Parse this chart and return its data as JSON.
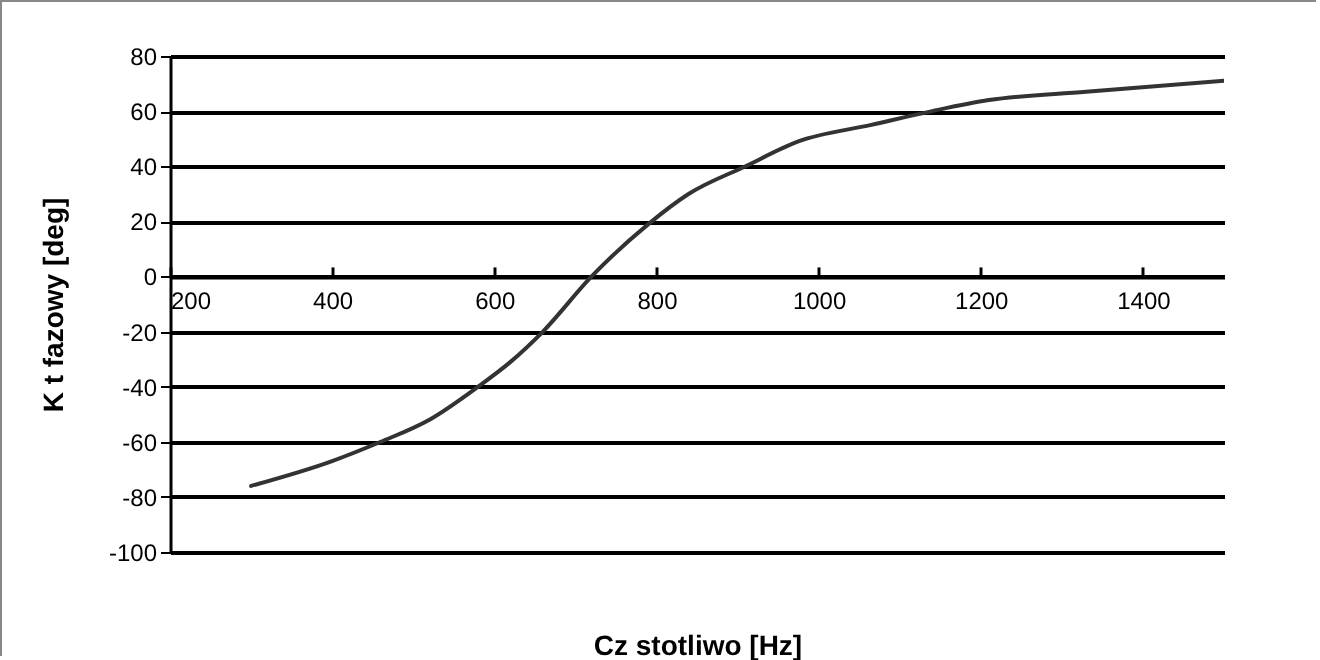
{
  "chart_data": {
    "type": "line",
    "xlabel": "Cz stotliwo    [Hz]",
    "ylabel": "K t fazowy [deg]",
    "xlim": [
      200,
      1500
    ],
    "xticks": [
      200,
      400,
      600,
      800,
      1000,
      1200,
      1400
    ],
    "ylim": [
      -100,
      80
    ],
    "yticks": [
      -100,
      -80,
      -60,
      -40,
      -20,
      0,
      20,
      40,
      60,
      80
    ],
    "grid": "y",
    "marker": "none",
    "line_style": "solid",
    "series": [
      {
        "color": "#333333",
        "x": [
          300,
          400,
          460,
          520,
          580,
          620,
          660,
          720,
          790,
          840,
          910,
          975,
          1065,
          1140,
          1210,
          1330,
          1500
        ],
        "values": [
          -76,
          -67,
          -60,
          -52,
          -40,
          -31,
          -20,
          0,
          19,
          30,
          40,
          49,
          55,
          60,
          64,
          67,
          71
        ]
      }
    ]
  }
}
